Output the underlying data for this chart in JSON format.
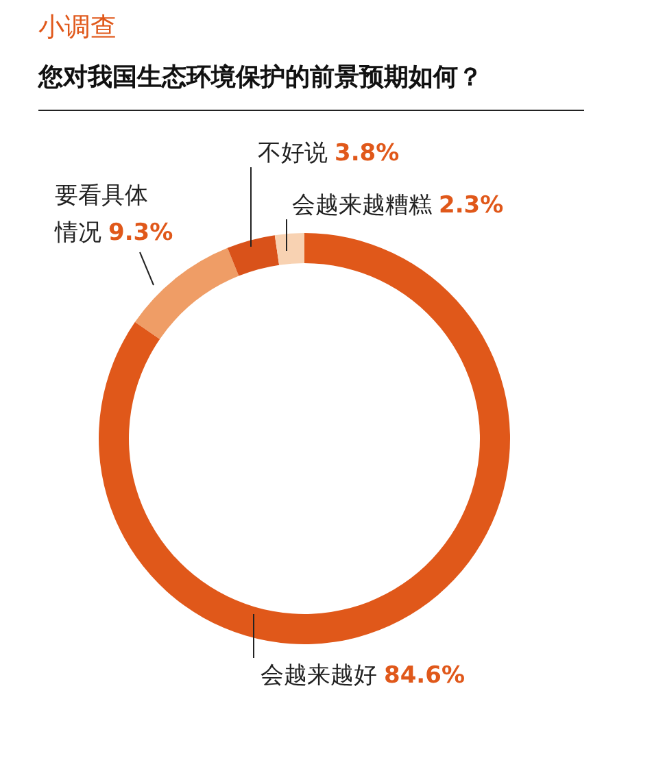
{
  "chart_data": {
    "type": "donut",
    "title": "小调查",
    "subtitle": "您对我国生态环境保护的前景预期如何？",
    "categories": [
      "会越来越好",
      "要看具体情况",
      "不好说",
      "会越来越糟糕"
    ],
    "values": [
      84.6,
      9.3,
      3.8,
      2.3
    ],
    "value_labels": [
      "84.6%",
      "9.3%",
      "3.8%",
      "2.3%"
    ],
    "colors": [
      "#e0581a",
      "#ef9d66",
      "#d9521a",
      "#f8d2b2"
    ]
  }
}
